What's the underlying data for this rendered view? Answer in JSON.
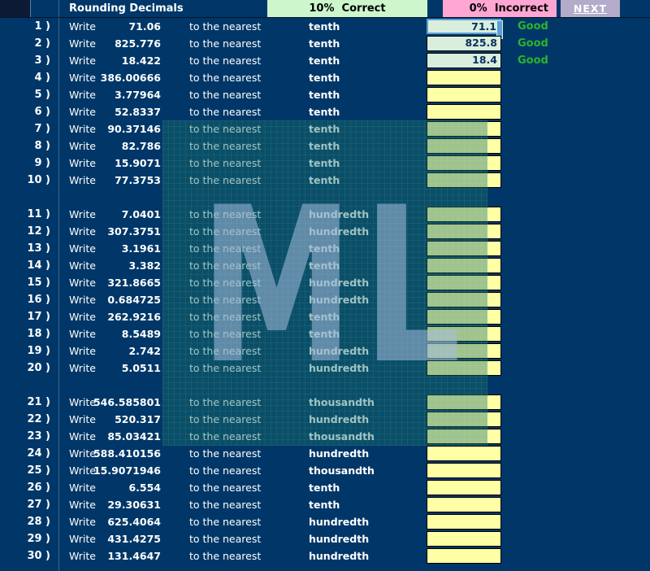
{
  "header": {
    "title": "Rounding Decimals",
    "correct_label": "10%  Correct",
    "incorrect_label": "0%  Incorrect",
    "next_label": "NEXT",
    "correct_bg": "#cdf6cd",
    "incorrect_bg": "#ffa6d2",
    "next_bg": "#b3abc9"
  },
  "labels": {
    "write": "Write",
    "nearest": "to the nearest",
    "good": "Good"
  },
  "watermark": {
    "text": "ML"
  },
  "colors": {
    "background": "#003768",
    "unanswered_box": "#ffffa6",
    "answered_box": "#d9eedd",
    "good_text": "#2db32d",
    "focus_border": "#5b9fd6"
  },
  "problems": [
    {
      "label": "1 )",
      "value": "71.06",
      "place": "tenth",
      "answer": "71.1",
      "feedback": "Good",
      "answered": true,
      "focused": true
    },
    {
      "label": "2 )",
      "value": "825.776",
      "place": "tenth",
      "answer": "825.8",
      "feedback": "Good",
      "answered": true,
      "focused": false
    },
    {
      "label": "3 )",
      "value": "18.422",
      "place": "tenth",
      "answer": "18.4",
      "feedback": "Good",
      "answered": true,
      "focused": false
    },
    {
      "label": "4 )",
      "value": "386.00666",
      "place": "tenth",
      "answer": "",
      "feedback": "",
      "answered": false,
      "focused": false
    },
    {
      "label": "5 )",
      "value": "3.77964",
      "place": "tenth",
      "answer": "",
      "feedback": "",
      "answered": false,
      "focused": false
    },
    {
      "label": "6 )",
      "value": "52.8337",
      "place": "tenth",
      "answer": "",
      "feedback": "",
      "answered": false,
      "focused": false
    },
    {
      "label": "7 )",
      "value": "90.37146",
      "place": "tenth",
      "answer": "",
      "feedback": "",
      "answered": false,
      "focused": false
    },
    {
      "label": "8 )",
      "value": "82.786",
      "place": "tenth",
      "answer": "",
      "feedback": "",
      "answered": false,
      "focused": false
    },
    {
      "label": "9 )",
      "value": "15.9071",
      "place": "tenth",
      "answer": "",
      "feedback": "",
      "answered": false,
      "focused": false
    },
    {
      "label": "10 )",
      "value": "77.3753",
      "place": "tenth",
      "answer": "",
      "feedback": "",
      "answered": false,
      "focused": false
    },
    {
      "label": "11 )",
      "value": "7.0401",
      "place": "hundredth",
      "answer": "",
      "feedback": "",
      "answered": false,
      "focused": false
    },
    {
      "label": "12 )",
      "value": "307.3751",
      "place": "hundredth",
      "answer": "",
      "feedback": "",
      "answered": false,
      "focused": false
    },
    {
      "label": "13 )",
      "value": "3.1961",
      "place": "tenth",
      "answer": "",
      "feedback": "",
      "answered": false,
      "focused": false
    },
    {
      "label": "14 )",
      "value": "3.382",
      "place": "tenth",
      "answer": "",
      "feedback": "",
      "answered": false,
      "focused": false
    },
    {
      "label": "15 )",
      "value": "321.8665",
      "place": "hundredth",
      "answer": "",
      "feedback": "",
      "answered": false,
      "focused": false
    },
    {
      "label": "16 )",
      "value": "0.684725",
      "place": "hundredth",
      "answer": "",
      "feedback": "",
      "answered": false,
      "focused": false
    },
    {
      "label": "17 )",
      "value": "262.9216",
      "place": "tenth",
      "answer": "",
      "feedback": "",
      "answered": false,
      "focused": false
    },
    {
      "label": "18 )",
      "value": "8.5489",
      "place": "tenth",
      "answer": "",
      "feedback": "",
      "answered": false,
      "focused": false
    },
    {
      "label": "19 )",
      "value": "2.742",
      "place": "hundredth",
      "answer": "",
      "feedback": "",
      "answered": false,
      "focused": false
    },
    {
      "label": "20 )",
      "value": "5.0511",
      "place": "hundredth",
      "answer": "",
      "feedback": "",
      "answered": false,
      "focused": false
    },
    {
      "label": "21 )",
      "value": "546.585801",
      "place": "thousandth",
      "answer": "",
      "feedback": "",
      "answered": false,
      "focused": false
    },
    {
      "label": "22 )",
      "value": "520.317",
      "place": "hundredth",
      "answer": "",
      "feedback": "",
      "answered": false,
      "focused": false
    },
    {
      "label": "23 )",
      "value": "85.03421",
      "place": "thousandth",
      "answer": "",
      "feedback": "",
      "answered": false,
      "focused": false
    },
    {
      "label": "24 )",
      "value": "588.410156",
      "place": "hundredth",
      "answer": "",
      "feedback": "",
      "answered": false,
      "focused": false
    },
    {
      "label": "25 )",
      "value": "15.9071946",
      "place": "thousandth",
      "answer": "",
      "feedback": "",
      "answered": false,
      "focused": false
    },
    {
      "label": "26 )",
      "value": "6.554",
      "place": "tenth",
      "answer": "",
      "feedback": "",
      "answered": false,
      "focused": false
    },
    {
      "label": "27 )",
      "value": "29.30631",
      "place": "tenth",
      "answer": "",
      "feedback": "",
      "answered": false,
      "focused": false
    },
    {
      "label": "28 )",
      "value": "625.4064",
      "place": "hundredth",
      "answer": "",
      "feedback": "",
      "answered": false,
      "focused": false
    },
    {
      "label": "29 )",
      "value": "431.4275",
      "place": "hundredth",
      "answer": "",
      "feedback": "",
      "answered": false,
      "focused": false
    },
    {
      "label": "30 )",
      "value": "131.4647",
      "place": "hundredth",
      "answer": "",
      "feedback": "",
      "answered": false,
      "focused": false
    }
  ]
}
